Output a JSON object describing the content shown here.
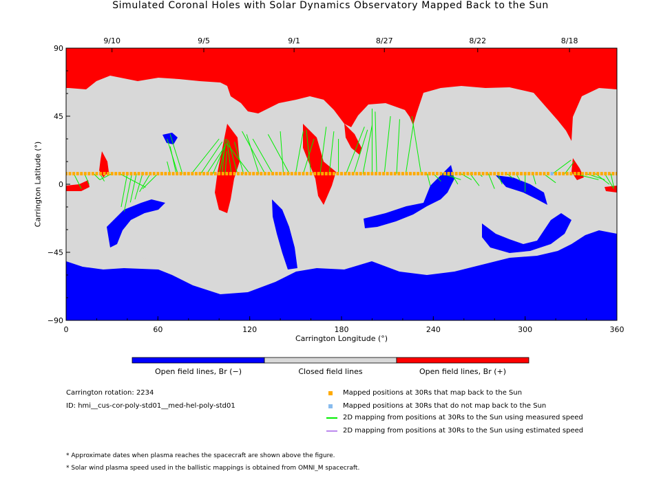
{
  "colors": {
    "open_negative": "#0000ff",
    "closed": "#d8d8d8",
    "open_positive": "#ff0000",
    "mapped_back": "#ffaa00",
    "not_mapped": "#88bbee",
    "measured_speed": "#00ee00",
    "estimated_speed": "#bb88ee"
  },
  "chart_data": {
    "type": "heatmap",
    "title": "Simulated Coronal Holes with Solar Dynamics Observatory Mapped Back to the Sun",
    "xlabel": "Carrington Longitude (°)",
    "ylabel": "Carrington Latitude (°)",
    "xlim": [
      0,
      360
    ],
    "ylim": [
      -90,
      90
    ],
    "x_ticks": [
      "0",
      "60",
      "120",
      "180",
      "240",
      "300",
      "360"
    ],
    "y_ticks": [
      "90",
      "45",
      "0",
      "-45",
      "-90"
    ],
    "top_dates": [
      {
        "label": "9/10",
        "lon": 30
      },
      {
        "label": "9/5",
        "lon": 90
      },
      {
        "label": "9/1",
        "lon": 149
      },
      {
        "label": "8/27",
        "lon": 208
      },
      {
        "label": "8/22",
        "lon": 269
      },
      {
        "label": "8/18",
        "lon": 329
      }
    ],
    "colorbar": [
      {
        "label": "Open field lines, Br (−)"
      },
      {
        "label": "Closed field lines"
      },
      {
        "label": "Open field lines, Br (+)"
      }
    ],
    "mapped_latitude": 7,
    "mapping_lines": [
      [
        5,
        7,
        10,
        -3
      ],
      [
        12,
        7,
        15,
        0
      ],
      [
        18,
        7,
        22,
        3
      ],
      [
        22,
        7,
        25,
        2
      ],
      [
        30,
        7,
        22,
        3
      ],
      [
        35,
        7,
        52,
        -2
      ],
      [
        40,
        7,
        36,
        -15
      ],
      [
        43,
        7,
        38,
        -18
      ],
      [
        46,
        7,
        42,
        -12
      ],
      [
        50,
        7,
        45,
        -10
      ],
      [
        55,
        7,
        48,
        -5
      ],
      [
        60,
        7,
        50,
        -3
      ],
      [
        68,
        7,
        66,
        15
      ],
      [
        72,
        7,
        68,
        25
      ],
      [
        73,
        7,
        66,
        30
      ],
      [
        76,
        7,
        68,
        33
      ],
      [
        82,
        7,
        100,
        30
      ],
      [
        88,
        7,
        102,
        28
      ],
      [
        92,
        7,
        105,
        27
      ],
      [
        96,
        7,
        104,
        26
      ],
      [
        100,
        7,
        104,
        25
      ],
      [
        102,
        7,
        104,
        30
      ],
      [
        104,
        7,
        105,
        22
      ],
      [
        108,
        7,
        105,
        30
      ],
      [
        112,
        7,
        106,
        29
      ],
      [
        116,
        7,
        110,
        28
      ],
      [
        120,
        7,
        105,
        27
      ],
      [
        126,
        7,
        118,
        33
      ],
      [
        130,
        7,
        115,
        35
      ],
      [
        135,
        7,
        122,
        30
      ],
      [
        142,
        7,
        140,
        35
      ],
      [
        146,
        7,
        132,
        33
      ],
      [
        150,
        7,
        155,
        35
      ],
      [
        155,
        7,
        162,
        30
      ],
      [
        160,
        7,
        157,
        36
      ],
      [
        166,
        7,
        170,
        38
      ],
      [
        172,
        7,
        175,
        35
      ],
      [
        178,
        7,
        178,
        30
      ],
      [
        183,
        7,
        195,
        38
      ],
      [
        188,
        7,
        197,
        36
      ],
      [
        194,
        7,
        200,
        39
      ],
      [
        200,
        7,
        200,
        50
      ],
      [
        203,
        7,
        202,
        48
      ],
      [
        208,
        7,
        212,
        45
      ],
      [
        216,
        7,
        218,
        43
      ],
      [
        222,
        7,
        227,
        40
      ],
      [
        232,
        7,
        226,
        45
      ],
      [
        236,
        7,
        238,
        -1
      ],
      [
        240,
        7,
        245,
        2
      ],
      [
        246,
        7,
        258,
        3
      ],
      [
        252,
        7,
        256,
        0
      ],
      [
        258,
        7,
        265,
        3
      ],
      [
        264,
        7,
        270,
        -1
      ],
      [
        270,
        7,
        272,
        5
      ],
      [
        276,
        7,
        280,
        -3
      ],
      [
        282,
        7,
        285,
        0
      ],
      [
        288,
        7,
        292,
        4
      ],
      [
        294,
        7,
        297,
        2
      ],
      [
        300,
        7,
        300,
        -5
      ],
      [
        305,
        7,
        307,
        0
      ],
      [
        312,
        7,
        320,
        1
      ],
      [
        318,
        7,
        330,
        16
      ],
      [
        326,
        7,
        332,
        15
      ],
      [
        332,
        7,
        348,
        3
      ],
      [
        340,
        7,
        352,
        3
      ],
      [
        346,
        7,
        355,
        0
      ],
      [
        352,
        7,
        358,
        -3
      ],
      [
        356,
        7,
        358,
        -2
      ]
    ],
    "not_mapped_points": [
      [
        318,
        7
      ]
    ]
  },
  "legend": {
    "mapped_back": "Mapped positions at 30Rs that map back to the Sun",
    "not_mapped": "Mapped positions at 30Rs that do not map back to the Sun",
    "measured_speed": "2D mapping from positions at 30Rs to the Sun using measured speed",
    "estimated_speed": "2D mapping from positions at 30Rs to the Sun using estimated speed"
  },
  "info": {
    "rotation": "Carrington rotation: 2234",
    "id": "ID: hmi__cus-cor-poly-std01__med-hel-poly-std01"
  },
  "notes": [
    "* Approximate dates when plasma reaches the spacecraft are shown above the figure.",
    "* Solar wind plasma speed used in the ballistic mappings is obtained from OMNI_M spacecraft."
  ]
}
